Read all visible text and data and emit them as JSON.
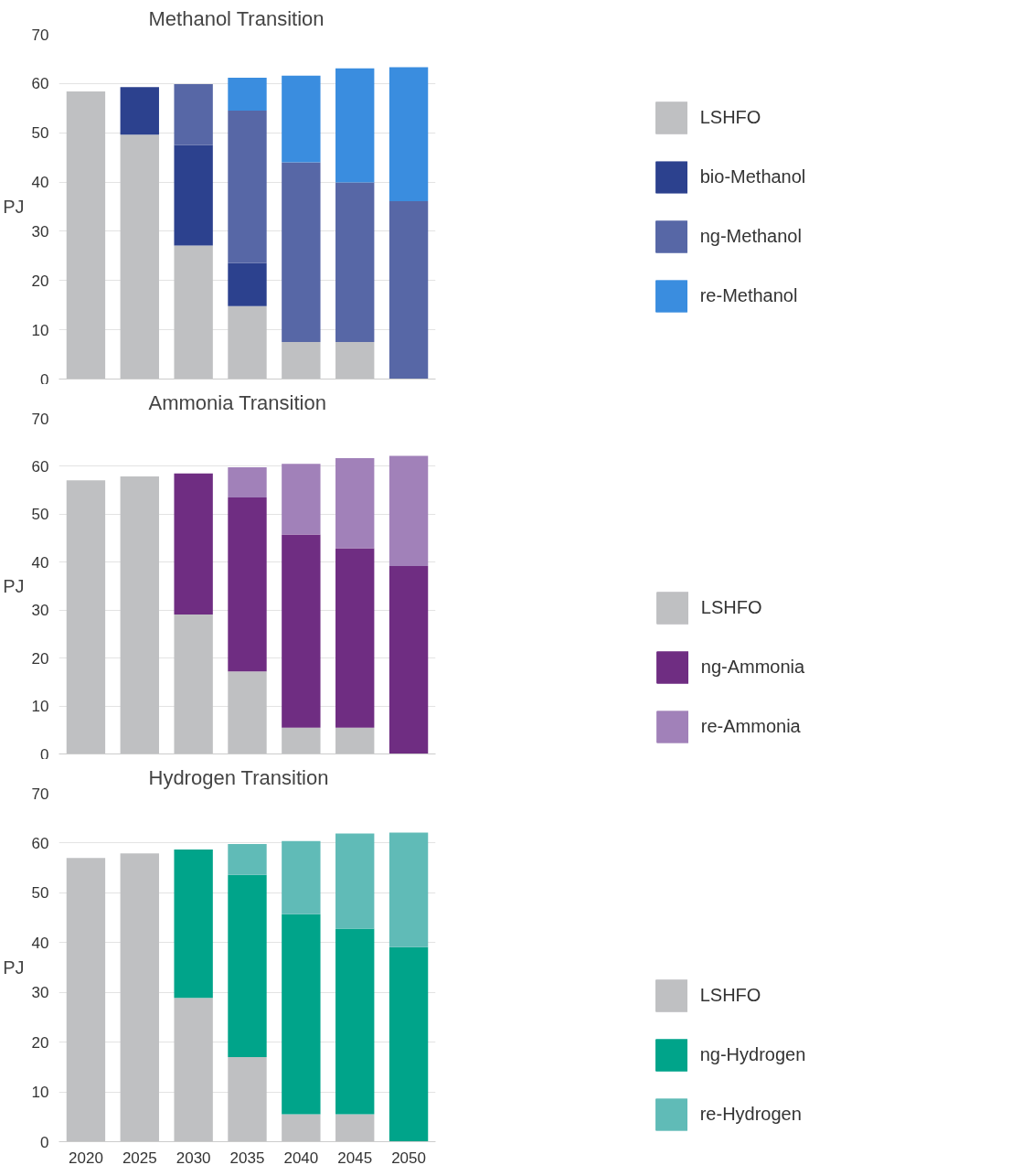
{
  "chart_data": [
    {
      "type": "bar",
      "title": "Methanol Transition",
      "ylabel": "PJ",
      "stacked": true,
      "categories": [
        "2020",
        "2025",
        "2030",
        "2035",
        "2040",
        "2045",
        "2050"
      ],
      "ylim": [
        0,
        70
      ],
      "yticks": [
        0,
        10,
        20,
        30,
        40,
        50,
        60,
        70
      ],
      "grid": "y",
      "legend": "right",
      "tick_labels": "y",
      "series": [
        {
          "name": "LSHFO",
          "color": "#bfc0c2",
          "values": [
            58.4,
            49.6,
            27.1,
            14.8,
            7.5,
            7.5,
            null
          ]
        },
        {
          "name": "bio-Methanol",
          "color": "#2c418e",
          "values": [
            null,
            9.7,
            20.4,
            8.8,
            null,
            null,
            null
          ]
        },
        {
          "name": "ng-Methanol",
          "color": "#5767a6",
          "values": [
            null,
            null,
            12.4,
            30.9,
            36.5,
            32.4,
            36.1
          ]
        },
        {
          "name": "re-Methanol",
          "color": "#3a8ddf",
          "values": [
            null,
            null,
            null,
            6.7,
            17.6,
            23.2,
            27.2
          ]
        }
      ]
    },
    {
      "type": "bar",
      "title": "Ammonia Transition",
      "ylabel": "PJ",
      "stacked": true,
      "categories": [
        "2020",
        "2025",
        "2030",
        "2035",
        "2040",
        "2045",
        "2050"
      ],
      "ylim": [
        0,
        70
      ],
      "yticks": [
        0,
        10,
        20,
        30,
        40,
        50,
        60,
        70
      ],
      "grid": "y",
      "legend": "bottom right",
      "tick_labels": "y",
      "series": [
        {
          "name": "LSHFO",
          "color": "#bfc0c2",
          "values": [
            57.1,
            57.9,
            29.1,
            17.2,
            5.5,
            5.5,
            null
          ]
        },
        {
          "name": "ng-Ammonia",
          "color": "#6f2d82",
          "values": [
            null,
            null,
            29.4,
            36.3,
            40.3,
            37.4,
            39.2
          ]
        },
        {
          "name": "re-Ammonia",
          "color": "#a181b9",
          "values": [
            null,
            null,
            null,
            6.3,
            14.7,
            18.8,
            23.0
          ]
        }
      ]
    },
    {
      "type": "bar",
      "title": "Hydrogen Transition",
      "ylabel": "PJ",
      "stacked": true,
      "categories": [
        "2020",
        "2025",
        "2030",
        "2035",
        "2040",
        "2045",
        "2050"
      ],
      "ylim": [
        0,
        70
      ],
      "yticks": [
        0,
        10,
        20,
        30,
        40,
        50,
        60,
        70
      ],
      "grid": "y",
      "legend": "bottom right",
      "series": [
        {
          "name": "LSHFO",
          "color": "#bfc0c2",
          "values": [
            57.0,
            57.9,
            28.9,
            17.0,
            5.5,
            5.5,
            null
          ]
        },
        {
          "name": "ng-Hydrogen",
          "color": "#00a48a",
          "values": [
            null,
            null,
            29.8,
            36.6,
            40.2,
            37.3,
            39.1
          ]
        },
        {
          "name": "re-Hydrogen",
          "color": "#60bbb7",
          "values": [
            null,
            null,
            null,
            6.2,
            14.7,
            19.1,
            23.0
          ]
        }
      ]
    }
  ]
}
